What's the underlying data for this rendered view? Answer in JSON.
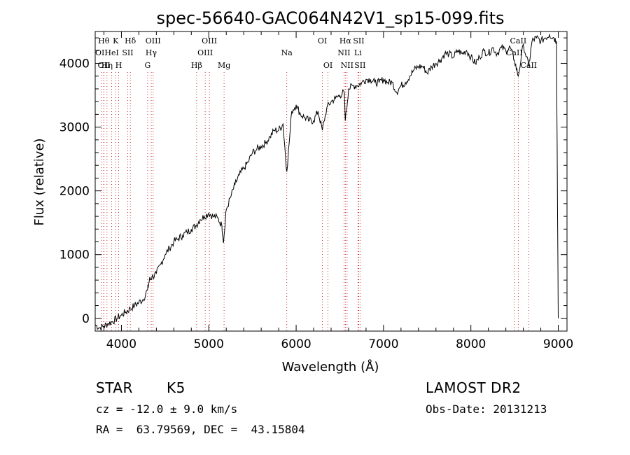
{
  "chart_data": {
    "type": "line",
    "title": "spec-56640-GAC064N42V1_sp15-099.fits",
    "xlabel": "Wavelength (Å)",
    "ylabel": "Flux (relative)",
    "xlim": [
      3700,
      9100
    ],
    "ylim": [
      -200,
      4500
    ],
    "x_ticks": [
      4000,
      5000,
      6000,
      7000,
      8000,
      9000
    ],
    "y_ticks": [
      0,
      1000,
      2000,
      3000,
      4000
    ],
    "x_tick_labels": [
      "4000",
      "5000",
      "6000",
      "7000",
      "8000",
      "9000"
    ],
    "y_tick_labels": [
      "0",
      "1000",
      "2000",
      "3000",
      "4000"
    ],
    "series": [
      {
        "color": "#000000",
        "x": [
          3700,
          3750,
          3800,
          3850,
          3900,
          3950,
          4000,
          4050,
          4100,
          4150,
          4200,
          4250,
          4300,
          4320,
          4350,
          4400,
          4450,
          4500,
          4550,
          4600,
          4650,
          4700,
          4750,
          4800,
          4850,
          4900,
          4950,
          5000,
          5050,
          5100,
          5150,
          5170,
          5200,
          5250,
          5300,
          5350,
          5400,
          5450,
          5500,
          5550,
          5600,
          5650,
          5700,
          5750,
          5800,
          5850,
          5893,
          5950,
          6000,
          6050,
          6100,
          6150,
          6200,
          6250,
          6300,
          6350,
          6400,
          6450,
          6500,
          6550,
          6563,
          6600,
          6650,
          6700,
          6750,
          6800,
          6850,
          6900,
          6950,
          7000,
          7050,
          7100,
          7150,
          7200,
          7250,
          7300,
          7350,
          7400,
          7450,
          7500,
          7550,
          7600,
          7650,
          7700,
          7750,
          7800,
          7850,
          7900,
          7950,
          8000,
          8050,
          8100,
          8150,
          8200,
          8250,
          8300,
          8350,
          8400,
          8450,
          8498,
          8542,
          8600,
          8662,
          8700,
          8750,
          8800,
          8850,
          8900,
          8950,
          8980,
          8990,
          9000
        ],
        "y": [
          -100,
          -150,
          -120,
          -80,
          -50,
          0,
          50,
          100,
          150,
          200,
          250,
          300,
          450,
          600,
          650,
          700,
          850,
          1000,
          1100,
          1200,
          1250,
          1300,
          1350,
          1400,
          1450,
          1550,
          1600,
          1650,
          1600,
          1580,
          1450,
          1200,
          1700,
          1900,
          2100,
          2250,
          2350,
          2450,
          2600,
          2650,
          2700,
          2750,
          2850,
          2950,
          2950,
          3050,
          2300,
          3250,
          3350,
          3200,
          3150,
          3100,
          3100,
          3250,
          2950,
          3300,
          3400,
          3450,
          3500,
          3550,
          3100,
          3600,
          3650,
          3650,
          3700,
          3750,
          3750,
          3700,
          3700,
          3750,
          3700,
          3700,
          3550,
          3650,
          3700,
          3800,
          3900,
          3950,
          3950,
          3850,
          3950,
          4000,
          4050,
          4150,
          4150,
          4100,
          4200,
          4150,
          4200,
          4100,
          4000,
          4100,
          4200,
          4150,
          4250,
          4150,
          4250,
          4200,
          4250,
          4050,
          3800,
          4300,
          3950,
          4350,
          4400,
          4350,
          4400,
          4450,
          4400,
          4350,
          2000,
          0
        ]
      }
    ],
    "lines": [
      {
        "x": 3771,
        "label": "OII",
        "row": 2
      },
      {
        "x": 3798,
        "label": "Hθ",
        "row": 1
      },
      {
        "x": 3800,
        "label": "OII",
        "row": 3
      },
      {
        "x": 3835,
        "label": "Hη",
        "row": 3
      },
      {
        "x": 3889,
        "label": "HeI",
        "row": 2
      },
      {
        "x": 3934,
        "label": "K",
        "row": 1
      },
      {
        "x": 3969,
        "label": "H",
        "row": 3
      },
      {
        "x": 4072,
        "label": "SII",
        "row": 2
      },
      {
        "x": 4102,
        "label": "Hδ",
        "row": 1
      },
      {
        "x": 4300,
        "label": "G",
        "row": 3
      },
      {
        "x": 4341,
        "label": "Hγ",
        "row": 2
      },
      {
        "x": 4363,
        "label": "OIII",
        "row": 1
      },
      {
        "x": 4861,
        "label": "Hβ",
        "row": 3
      },
      {
        "x": 4959,
        "label": "OIII",
        "row": 2
      },
      {
        "x": 5007,
        "label": "OIII",
        "row": 1
      },
      {
        "x": 5175,
        "label": "Mg",
        "row": 3
      },
      {
        "x": 5893,
        "label": "Na",
        "row": 2
      },
      {
        "x": 6300,
        "label": "OI",
        "row": 1
      },
      {
        "x": 6364,
        "label": "OI",
        "row": 3
      },
      {
        "x": 6548,
        "label": "NII",
        "row": 2
      },
      {
        "x": 6563,
        "label": "Hα",
        "row": 1
      },
      {
        "x": 6583,
        "label": "NII",
        "row": 3
      },
      {
        "x": 6707,
        "label": "Li",
        "row": 2
      },
      {
        "x": 6716,
        "label": "SII",
        "row": 1
      },
      {
        "x": 6731,
        "label": "SII",
        "row": 3
      },
      {
        "x": 8498,
        "label": "CaII",
        "row": 2
      },
      {
        "x": 8542,
        "label": "CaII",
        "row": 1
      },
      {
        "x": 8662,
        "label": "CaII",
        "row": 3
      }
    ]
  },
  "info": {
    "object_type": "STAR",
    "subclass": "K5",
    "survey": "LAMOST DR2",
    "redshift": "cz = -12.0 ± 9.0 km/s",
    "obs_date": "Obs-Date: 20131213",
    "coordinates": "RA =  63.79569, DEC =  43.15804"
  }
}
